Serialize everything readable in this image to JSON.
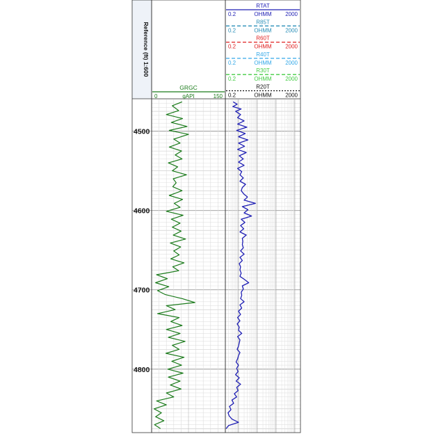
{
  "chart_data": {
    "type": "line",
    "depth_axis": {
      "label": "Reference (ft) 1:600",
      "range": [
        4460,
        4880
      ],
      "ticks": [
        "4500",
        "4600",
        "4700",
        "4800"
      ],
      "tick_values": [
        4500,
        4600,
        4700,
        4800
      ]
    },
    "track1": {
      "curve": {
        "name": "GRGC",
        "unit": "gAPI",
        "min_label": "0",
        "max_label": "150",
        "scale": "linear",
        "range": [
          0,
          150
        ],
        "color": "#1a7a1a",
        "depth": [
          4463,
          4468,
          4474,
          4479,
          4484,
          4489,
          4494,
          4499,
          4504,
          4510,
          4515,
          4520,
          4525,
          4530,
          4535,
          4540,
          4545,
          4550,
          4555,
          4560,
          4565,
          4570,
          4575,
          4581,
          4586,
          4591,
          4596,
          4601,
          4606,
          4611,
          4616,
          4621,
          4626,
          4631,
          4636,
          4641,
          4646,
          4651,
          4656,
          4661,
          4666,
          4671,
          4676,
          4681,
          4686,
          4691,
          4696,
          4701,
          4706,
          4711,
          4716,
          4720,
          4725,
          4730,
          4735,
          4740,
          4745,
          4750,
          4755,
          4760,
          4765,
          4770,
          4775,
          4780,
          4785,
          4790,
          4795,
          4800,
          4805,
          4810,
          4815,
          4820,
          4825,
          4830,
          4835,
          4840,
          4845,
          4850,
          4855,
          4860,
          4865,
          4870,
          4875
        ],
        "values": [
          62,
          42,
          55,
          30,
          63,
          40,
          72,
          36,
          75,
          45,
          58,
          36,
          61,
          48,
          62,
          34,
          53,
          42,
          71,
          44,
          50,
          43,
          62,
          36,
          63,
          46,
          58,
          30,
          64,
          40,
          58,
          42,
          60,
          44,
          69,
          38,
          59,
          45,
          56,
          39,
          66,
          43,
          55,
          10,
          32,
          8,
          35,
          12,
          28,
          62,
          88,
          30,
          48,
          12,
          56,
          39,
          62,
          30,
          58,
          34,
          68,
          42,
          56,
          29,
          66,
          41,
          61,
          33,
          64,
          34,
          58,
          38,
          60,
          30,
          45,
          10,
          30,
          5,
          20,
          8,
          25,
          6,
          18
        ]
      }
    },
    "track2": {
      "scale": "log",
      "range": [
        0.2,
        2000
      ],
      "curves": [
        {
          "name": "RTAT",
          "unit": "OHMM",
          "min_label": "0.2",
          "max_label": "2000",
          "color": "#1f1fb4",
          "dash": "solid"
        },
        {
          "name": "R85T",
          "unit": "OHMM",
          "min_label": "0.2",
          "max_label": "2000",
          "color": "#2a8fb8",
          "dash": "dashed"
        },
        {
          "name": "R60T",
          "unit": "OHMM",
          "min_label": "0.2",
          "max_label": "2000",
          "color": "#e02020",
          "dash": "dashed"
        },
        {
          "name": "R40T",
          "unit": "OHMM",
          "min_label": "0.2",
          "max_label": "2000",
          "color": "#33a8e8",
          "dash": "dashed"
        },
        {
          "name": "R30T",
          "unit": "OHMM",
          "min_label": "0.2",
          "max_label": "2000",
          "color": "#44cc44",
          "dash": "dashed"
        },
        {
          "name": "R20T",
          "unit": "OHMM",
          "min_label": "0.2",
          "max_label": "2000",
          "color": "#111111",
          "dash": "dotted"
        }
      ],
      "plotted": {
        "name": "RTAT",
        "depth": [
          4463,
          4466,
          4469,
          4472,
          4475,
          4479,
          4483,
          4487,
          4491,
          4495,
          4499,
          4503,
          4507,
          4511,
          4515,
          4519,
          4523,
          4527,
          4531,
          4535,
          4539,
          4543,
          4547,
          4551,
          4555,
          4559,
          4563,
          4567,
          4571,
          4575,
          4579,
          4583,
          4587,
          4591,
          4595,
          4599,
          4603,
          4607,
          4611,
          4615,
          4619,
          4623,
          4627,
          4631,
          4635,
          4639,
          4643,
          4647,
          4651,
          4655,
          4659,
          4663,
          4667,
          4671,
          4675,
          4679,
          4683,
          4687,
          4691,
          4695,
          4699,
          4703,
          4707,
          4711,
          4715,
          4719,
          4723,
          4727,
          4731,
          4735,
          4739,
          4743,
          4747,
          4751,
          4755,
          4759,
          4763,
          4767,
          4771,
          4775,
          4779,
          4783,
          4787,
          4791,
          4795,
          4799,
          4803,
          4807,
          4811,
          4815,
          4819,
          4823,
          4827,
          4831,
          4835,
          4839,
          4843,
          4847,
          4851,
          4855,
          4859,
          4863,
          4867,
          4871,
          4875
        ],
        "values": [
          0.52,
          0.85,
          0.5,
          1.4,
          0.7,
          1.3,
          0.9,
          2.0,
          0.9,
          2.8,
          0.8,
          2.3,
          1.0,
          3.2,
          1.0,
          2.1,
          0.9,
          2.6,
          1.1,
          1.8,
          1.0,
          2.0,
          0.9,
          1.5,
          1.2,
          1.8,
          1.2,
          2.4,
          1.6,
          1.4,
          1.9,
          3.0,
          2.0,
          8.0,
          1.6,
          3.2,
          2.0,
          5.0,
          1.4,
          2.2,
          1.3,
          1.9,
          1.2,
          2.6,
          1.6,
          1.7,
          1.6,
          1.8,
          1.3,
          2.0,
          1.2,
          1.6,
          1.1,
          1.3,
          1.2,
          1.4,
          1.2,
          2.1,
          3.5,
          1.6,
          1.8,
          1.4,
          1.5,
          1.3,
          2.0,
          1.2,
          1.5,
          1.0,
          1.3,
          0.9,
          1.2,
          0.85,
          1.1,
          1.0,
          1.5,
          0.9,
          1.2,
          1.1,
          1.0,
          0.85,
          1.2,
          1.0,
          0.9,
          0.75,
          1.0,
          0.8,
          0.95,
          0.7,
          1.1,
          0.75,
          1.3,
          0.8,
          0.95,
          0.6,
          0.8,
          0.45,
          0.55,
          0.33,
          0.4,
          0.28,
          0.32,
          0.45,
          1.0,
          0.3,
          0.22
        ]
      }
    }
  }
}
